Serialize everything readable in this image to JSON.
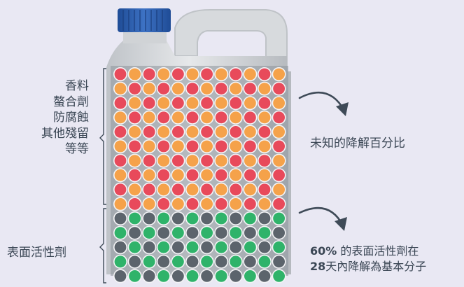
{
  "image": {
    "subject": "plastic-jug-with-ingredient-dots",
    "colors": {
      "background": "#e9e8f3",
      "dot_red": "#e84a5b",
      "dot_orange": "#f5a24a",
      "dot_green": "#2fb36a",
      "dot_dark": "#5c646c",
      "cap": "#2e5fae",
      "text": "#3e4a57"
    },
    "other_ingredients_rows": 10,
    "surfactant_rows": 5,
    "dots_per_row": 12
  },
  "labels": {
    "other_ingredients": [
      "香料",
      "螯合劑",
      "防腐蝕",
      "其他殘留",
      "等等"
    ],
    "surfactants": "表面活性劑",
    "unknown_degradation": "未知的降解百分比",
    "surfactant_stat_line1_bold": "60%",
    "surfactant_stat_line1_rest": " 的表面活性劑在",
    "surfactant_stat_line2_bold": "28",
    "surfactant_stat_line2_rest": "天內降解為基本分子"
  },
  "icons": [
    "curved-arrow-icon",
    "curved-arrow-icon"
  ]
}
